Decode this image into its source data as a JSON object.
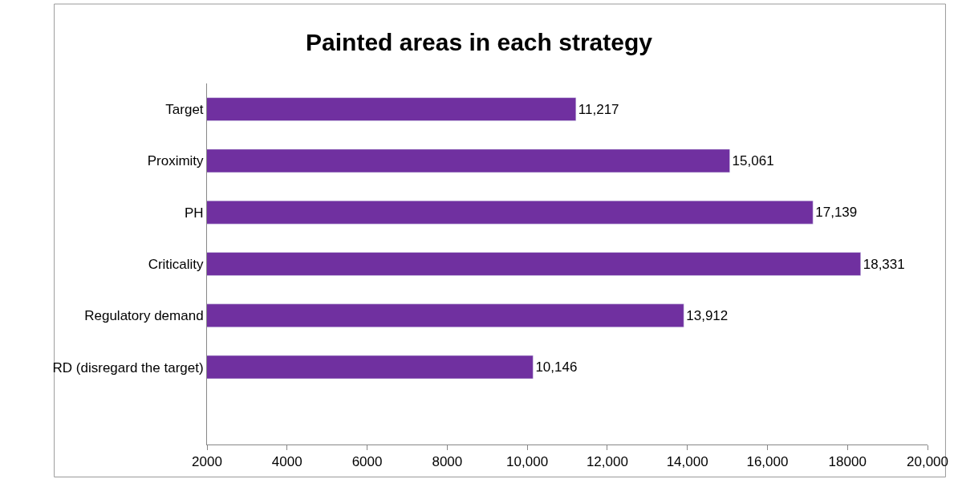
{
  "chart_data": {
    "type": "bar",
    "orientation": "horizontal",
    "title": "Painted areas in each strategy",
    "categories": [
      "Target",
      "Proximity",
      "PH",
      "Criticality",
      "Regulatory demand",
      "RD (disregard the target)",
      null
    ],
    "values": [
      11217,
      15061,
      17139,
      18331,
      13912,
      10146,
      null
    ],
    "value_labels": [
      "11,217",
      "15,061",
      "17,139",
      "18,331",
      "13,912",
      "10,146",
      null
    ],
    "color": "#7030a0",
    "xlim": [
      2000,
      20000
    ],
    "xticks": [
      2000,
      4000,
      6000,
      8000,
      {
        "value": 10000,
        "label": "10,000"
      },
      {
        "value": 12000,
        "label": "12,000"
      },
      {
        "value": 14000,
        "label": "14,000"
      },
      {
        "value": 16000,
        "label": "16,000"
      },
      18000,
      {
        "value": 20000,
        "label": "20,000"
      }
    ],
    "legend": false
  }
}
